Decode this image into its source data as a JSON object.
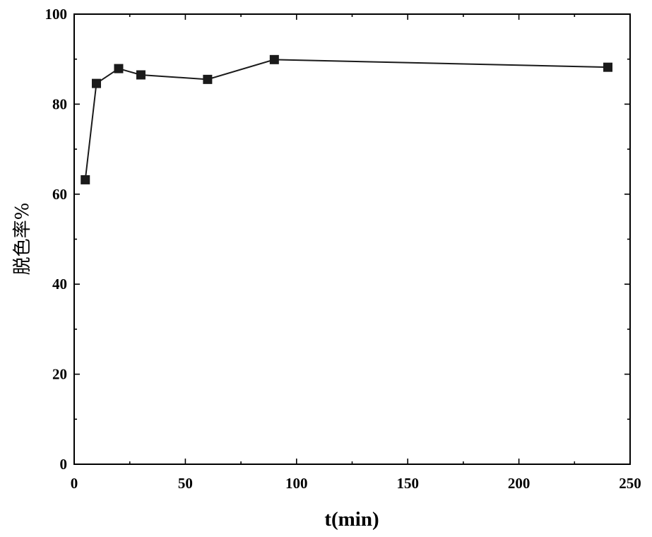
{
  "chart_data": {
    "type": "line",
    "title": "",
    "xlabel": "t(min)",
    "ylabel": "脱色率%",
    "xlim": [
      0,
      250
    ],
    "ylim": [
      0,
      100
    ],
    "xticks": [
      0,
      50,
      100,
      150,
      200,
      250
    ],
    "yticks": [
      0,
      20,
      40,
      60,
      80,
      100
    ],
    "grid": false,
    "series": [
      {
        "x": [
          5,
          10,
          20,
          30,
          60,
          90,
          240
        ],
        "y": [
          63.2,
          84.6,
          87.9,
          86.5,
          85.5,
          89.9,
          88.2
        ],
        "marker": "square",
        "color": "#1a1a1a"
      }
    ]
  }
}
